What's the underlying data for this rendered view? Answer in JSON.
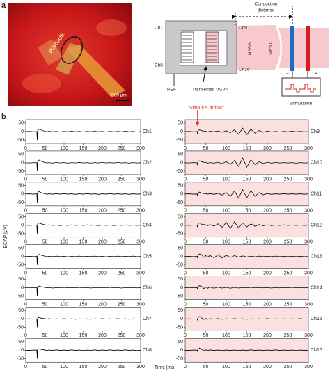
{
  "panel_labels": [
    "a",
    "b"
  ],
  "photo": {
    "brand": "PURDUE",
    "scale_bar": "500 μm"
  },
  "schematic": {
    "ch1": "Ch1",
    "ch8": "Ch8",
    "ch9": "Ch9",
    "ch16": "Ch16",
    "ref": "REF",
    "transected": "Transected VGVN",
    "vgvn": "VGVN",
    "lcvn": "LCVN",
    "conduction": [
      "Conduction",
      "distance"
    ],
    "minus": "−",
    "plus": "+",
    "stimulation": "Stimulation"
  },
  "chart_data": {
    "type": "line",
    "xlabel": "Time [ms]",
    "ylabel": "ECAP [μV]",
    "annotation": "Stimulus artifact",
    "x": [
      0,
      10,
      20,
      29,
      30,
      31,
      35,
      40,
      45,
      50,
      55,
      60,
      70,
      80,
      90,
      100,
      110,
      120,
      130,
      140,
      150,
      160,
      170,
      180,
      190,
      200,
      210,
      220,
      230,
      240,
      250,
      260,
      270,
      280,
      290,
      300
    ],
    "xlim": [
      0,
      300
    ],
    "xticks": [
      0,
      50,
      100,
      150,
      200,
      250,
      300
    ],
    "ylim": [
      -70,
      70
    ],
    "yticks": [
      -50,
      0,
      50
    ],
    "series": [
      {
        "name": "Ch1",
        "color": "#000000",
        "values": [
          0,
          1,
          -1,
          0,
          -50,
          6,
          14,
          9,
          4,
          3,
          -2,
          2,
          -1,
          1,
          -2,
          1,
          -1,
          2,
          -1,
          1,
          -2,
          1,
          -1,
          2,
          -1,
          1,
          -2,
          1,
          -1,
          1,
          -1,
          2,
          -1,
          1,
          -2,
          0
        ]
      },
      {
        "name": "Ch2",
        "color": "#000000",
        "values": [
          0,
          -1,
          1,
          0,
          -50,
          8,
          16,
          10,
          5,
          2,
          -1,
          1,
          -2,
          2,
          -1,
          1,
          -2,
          1,
          -1,
          2,
          -1,
          1,
          -2,
          1,
          -1,
          2,
          -1,
          1,
          -1,
          2,
          -1,
          1,
          -2,
          1,
          -1,
          0
        ]
      },
      {
        "name": "Ch3",
        "color": "#000000",
        "values": [
          0,
          1,
          -1,
          1,
          -50,
          7,
          15,
          8,
          4,
          2,
          -2,
          1,
          -1,
          2,
          -1,
          2,
          -1,
          1,
          -2,
          1,
          -1,
          2,
          -1,
          1,
          -2,
          1,
          -1,
          2,
          -1,
          1,
          -1,
          1,
          -2,
          1,
          -1,
          0
        ]
      },
      {
        "name": "Ch4",
        "color": "#000000",
        "values": [
          0,
          -1,
          1,
          0,
          -50,
          6,
          13,
          9,
          5,
          3,
          -1,
          2,
          -1,
          1,
          -2,
          1,
          -1,
          2,
          -1,
          1,
          -1,
          2,
          -1,
          1,
          -2,
          1,
          -1,
          1,
          -2,
          1,
          -1,
          2,
          -1,
          1,
          -1,
          0
        ]
      },
      {
        "name": "Ch5",
        "color": "#000000",
        "values": [
          0,
          1,
          -1,
          0,
          -50,
          5,
          12,
          7,
          4,
          2,
          -2,
          1,
          -1,
          2,
          -1,
          1,
          -2,
          1,
          -1,
          2,
          -1,
          1,
          -1,
          2,
          -1,
          1,
          -2,
          1,
          -1,
          2,
          -1,
          1,
          -1,
          2,
          -1,
          0
        ]
      },
      {
        "name": "Ch6",
        "color": "#000000",
        "values": [
          0,
          -1,
          1,
          0,
          -50,
          5,
          10,
          6,
          3,
          2,
          -1,
          1,
          -2,
          1,
          -1,
          2,
          -1,
          1,
          -1,
          2,
          -1,
          1,
          -2,
          1,
          -1,
          1,
          -1,
          2,
          -1,
          1,
          -2,
          1,
          -1,
          1,
          -1,
          0
        ]
      },
      {
        "name": "Ch7",
        "color": "#000000",
        "values": [
          0,
          1,
          -1,
          1,
          -50,
          4,
          9,
          5,
          3,
          2,
          -1,
          2,
          -1,
          1,
          -1,
          2,
          -1,
          1,
          -2,
          1,
          -1,
          1,
          -2,
          1,
          -1,
          2,
          -1,
          1,
          -1,
          2,
          -1,
          1,
          -2,
          1,
          -1,
          0
        ]
      },
      {
        "name": "Ch8",
        "color": "#000000",
        "values": [
          0,
          -1,
          1,
          0,
          -50,
          4,
          8,
          5,
          3,
          1,
          -2,
          1,
          -1,
          2,
          -1,
          1,
          -1,
          2,
          -1,
          1,
          -2,
          1,
          -1,
          2,
          -1,
          1,
          -1,
          2,
          -1,
          1,
          -1,
          2,
          -1,
          1,
          -2,
          0
        ]
      },
      {
        "name": "Ch9",
        "color": "#000000",
        "values": [
          0,
          1,
          -1,
          0,
          -12,
          6,
          10,
          5,
          3,
          2,
          -2,
          2,
          -1,
          3,
          -4,
          5,
          -7,
          10,
          -16,
          20,
          -18,
          14,
          -9,
          6,
          -4,
          3,
          -2,
          1,
          -2,
          1,
          -1,
          2,
          -1,
          1,
          -1,
          0
        ]
      },
      {
        "name": "Ch10",
        "color": "#000000",
        "values": [
          0,
          -1,
          1,
          0,
          -14,
          7,
          12,
          6,
          3,
          2,
          -2,
          1,
          -2,
          3,
          -5,
          7,
          -10,
          14,
          -22,
          28,
          -25,
          18,
          -10,
          6,
          -4,
          3,
          -2,
          2,
          -1,
          1,
          -1,
          1,
          -2,
          1,
          -1,
          0
        ]
      },
      {
        "name": "Ch11",
        "color": "#000000",
        "values": [
          0,
          1,
          -1,
          0,
          -12,
          6,
          11,
          5,
          3,
          2,
          -1,
          2,
          -2,
          4,
          -6,
          9,
          -14,
          18,
          -24,
          26,
          -22,
          20,
          -14,
          8,
          -5,
          3,
          -2,
          1,
          -1,
          2,
          -1,
          1,
          -1,
          1,
          -1,
          0
        ]
      },
      {
        "name": "Ch12",
        "color": "#000000",
        "values": [
          0,
          -1,
          1,
          0,
          -10,
          8,
          14,
          6,
          4,
          3,
          -3,
          4,
          -5,
          8,
          -12,
          16,
          -18,
          20,
          -16,
          14,
          -10,
          8,
          -6,
          4,
          -3,
          2,
          -2,
          1,
          -1,
          2,
          -1,
          1,
          -1,
          1,
          -1,
          0
        ]
      },
      {
        "name": "Ch13",
        "color": "#000000",
        "values": [
          0,
          1,
          -1,
          0,
          -10,
          8,
          15,
          10,
          -6,
          5,
          -4,
          6,
          -8,
          10,
          -9,
          7,
          -6,
          5,
          -4,
          3,
          -3,
          2,
          -2,
          2,
          -1,
          1,
          -1,
          2,
          -1,
          1,
          -1,
          1,
          -1,
          1,
          -1,
          0
        ]
      },
      {
        "name": "Ch14",
        "color": "#000000",
        "values": [
          0,
          -1,
          1,
          0,
          -8,
          6,
          12,
          8,
          -5,
          4,
          -3,
          4,
          -3,
          3,
          -2,
          2,
          -3,
          2,
          -2,
          1,
          -1,
          2,
          -1,
          1,
          -1,
          1,
          -2,
          1,
          -1,
          1,
          -1,
          2,
          -1,
          1,
          -1,
          0
        ]
      },
      {
        "name": "Ch15",
        "color": "#000000",
        "values": [
          0,
          1,
          -1,
          0,
          -8,
          6,
          14,
          6,
          -3,
          3,
          -2,
          2,
          -1,
          2,
          -2,
          1,
          -1,
          2,
          -1,
          1,
          -2,
          1,
          -1,
          1,
          -1,
          2,
          -1,
          1,
          -1,
          1,
          -1,
          1,
          -1,
          2,
          -1,
          0
        ]
      },
      {
        "name": "Ch16",
        "color": "#000000",
        "values": [
          0,
          -1,
          1,
          0,
          -6,
          5,
          12,
          5,
          -3,
          2,
          -2,
          2,
          -1,
          1,
          -2,
          1,
          -1,
          1,
          -2,
          1,
          -1,
          2,
          -1,
          1,
          -1,
          1,
          -1,
          2,
          -1,
          1,
          -1,
          1,
          -2,
          1,
          -1,
          0
        ]
      }
    ]
  }
}
